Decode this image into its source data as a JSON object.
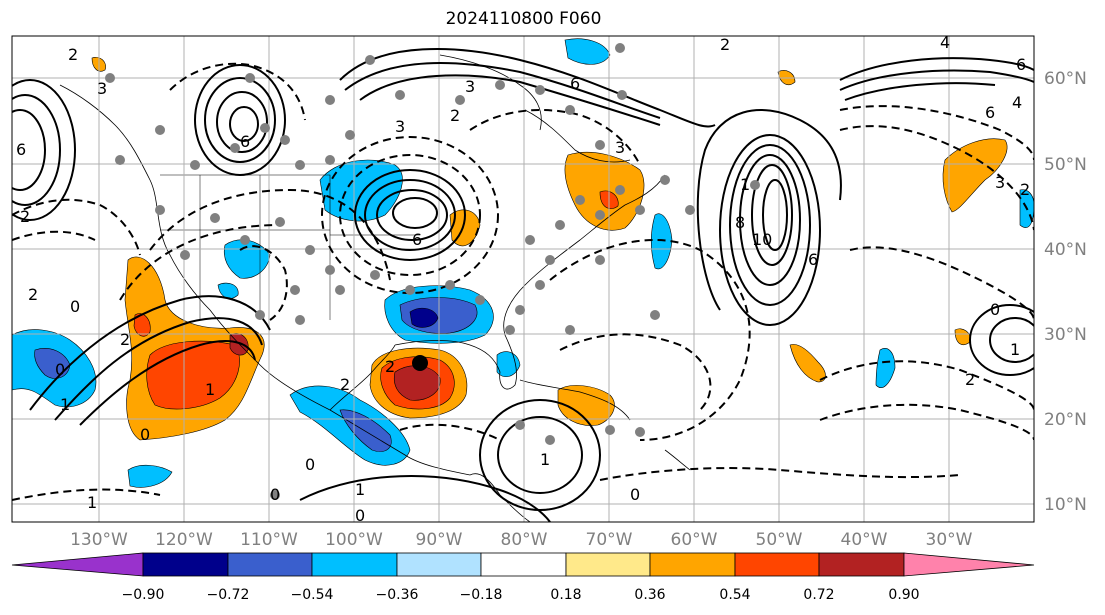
{
  "title": "2024110800 F060",
  "map": {
    "projection": "equirectangular",
    "lon_range": [
      "140°W",
      "20°W"
    ],
    "lat_range": [
      "8°N",
      "65°N"
    ],
    "gridlines": true
  },
  "lon_labels": [
    "130°W",
    "120°W",
    "110°W",
    "100°W",
    "90°W",
    "80°W",
    "70°W",
    "60°W",
    "50°W",
    "40°W",
    "30°W"
  ],
  "lat_labels": [
    "60°N",
    "50°N",
    "40°N",
    "30°N",
    "20°N",
    "10°N"
  ],
  "colorbar": {
    "ticks": [
      "−0.90",
      "−0.72",
      "−0.54",
      "−0.36",
      "−0.18",
      "0.18",
      "0.36",
      "0.54",
      "0.72",
      "0.90"
    ],
    "colors": [
      "#9932cc",
      "#00008b",
      "#3a5fcd",
      "#00bfff",
      "#b0e2ff",
      "#ffffff",
      "#ffe98a",
      "#ffa500",
      "#ff4500",
      "#b22222",
      "#ff82ab"
    ],
    "extend": "both"
  },
  "contour_labels": {
    "ul_2": "2",
    "ul_3": "3",
    "ul_6": "6",
    "ul_4": "4",
    "tr_4": "4",
    "tr_6": "6",
    "nw_6": "6",
    "nw_3": "3",
    "nw_2": "2",
    "n_3": "3",
    "n_6": "6",
    "n_2": "2",
    "gl_6": "6",
    "gl_3": "3",
    "low_1": "1",
    "atl_8": "8",
    "atl_10": "10",
    "atl_6": "6",
    "e_3": "3",
    "e_2": "2",
    "e_0": "0",
    "e_1": "1",
    "pac_2": "2",
    "pac_0": "0",
    "w_0": "0",
    "w_1": "1",
    "mex_0": "0",
    "mex_2": "2",
    "sw_1": "1",
    "sw_0": "0",
    "car_1": "1",
    "car_0": "0",
    "s_0": "0",
    "s_1": "1",
    "gulf_2": "2",
    "wm_2": "2",
    "bl_1": "1",
    "bl_0": "0",
    "tl_6": "6",
    "tl_2": "2",
    "mid_2": "2"
  }
}
